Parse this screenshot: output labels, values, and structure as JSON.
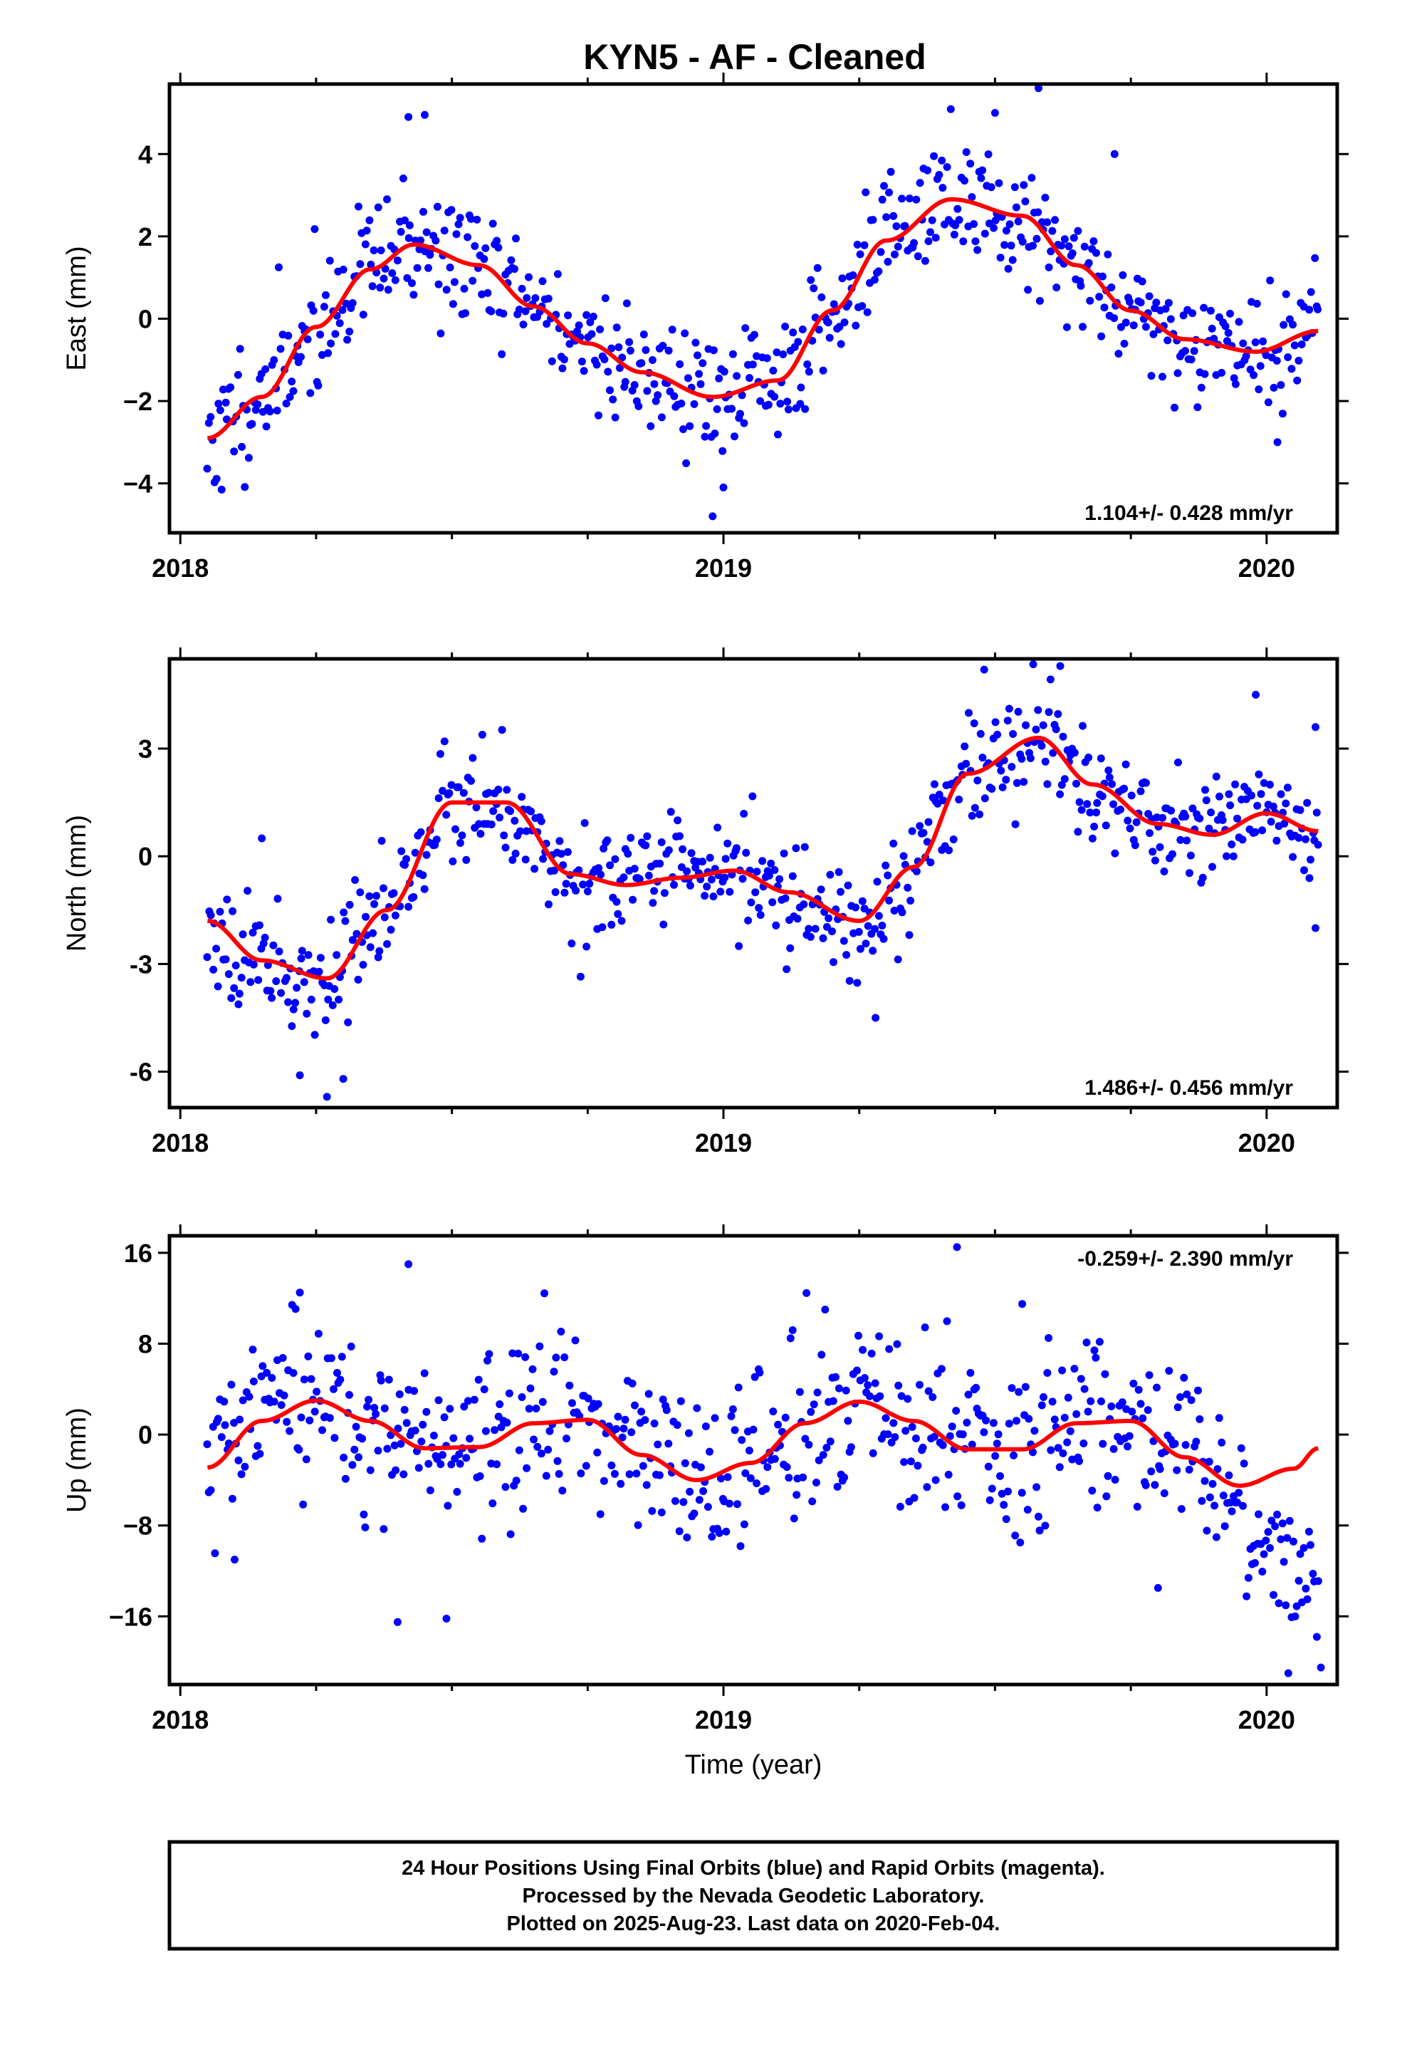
{
  "title": "KYN5  - AF - Cleaned",
  "colors": {
    "final_orbits": "#0000ff",
    "fit_curve": "#ff0000",
    "frame": "#000000"
  },
  "chart_data": [
    {
      "type": "scatter",
      "panel": "east",
      "ylabel": "East (mm)",
      "xlabel": "",
      "xlim": [
        2017.98,
        2020.13
      ],
      "ylim": [
        -5.2,
        5.7
      ],
      "xticks": [
        2018,
        2019,
        2020
      ],
      "xtick_labels": [
        "2018",
        "2019",
        "2020"
      ],
      "yticks": [
        -4,
        -2,
        0,
        2,
        4
      ],
      "ytick_labels": [
        "−4",
        "−2",
        "0",
        "2",
        "4"
      ],
      "rate_label": "1.104+/- 0.428 mm/yr",
      "rate_position": "bottom-right",
      "data_span": [
        2018.05,
        2020.095
      ],
      "fit_curve": {
        "x": [
          2018.05,
          2018.15,
          2018.25,
          2018.35,
          2018.43,
          2018.55,
          2018.65,
          2018.75,
          2018.85,
          2018.98,
          2019.1,
          2019.2,
          2019.3,
          2019.42,
          2019.55,
          2019.65,
          2019.75,
          2019.85,
          2019.98,
          2020.095
        ],
        "y": [
          -2.9,
          -1.9,
          -0.2,
          1.2,
          1.8,
          1.3,
          0.3,
          -0.6,
          -1.3,
          -1.9,
          -1.5,
          0.2,
          1.9,
          2.9,
          2.5,
          1.3,
          0.2,
          -0.5,
          -0.8,
          -0.3
        ]
      },
      "points": {
        "seed": 11,
        "count": 620,
        "scatter_sd": 0.95,
        "outliers": [
          [
            2018.42,
            4.9
          ],
          [
            2018.45,
            4.95
          ],
          [
            2019.58,
            5.6
          ],
          [
            2019.72,
            4.0
          ],
          [
            2018.98,
            -4.8
          ],
          [
            2019.0,
            -4.1
          ],
          [
            2020.02,
            -3.0
          ],
          [
            2019.5,
            5.0
          ]
        ]
      }
    },
    {
      "type": "scatter",
      "panel": "north",
      "ylabel": "North (mm)",
      "xlabel": "",
      "xlim": [
        2017.98,
        2020.13
      ],
      "ylim": [
        -7.0,
        5.5
      ],
      "xticks": [
        2018,
        2019,
        2020
      ],
      "xtick_labels": [
        "2018",
        "2019",
        "2020"
      ],
      "yticks": [
        -6,
        -3,
        0,
        3
      ],
      "ytick_labels": [
        "-6",
        "-3",
        "0",
        "3"
      ],
      "rate_label": "1.486+/- 0.456 mm/yr",
      "rate_position": "bottom-right",
      "data_span": [
        2018.05,
        2020.095
      ],
      "fit_curve": {
        "x": [
          2018.05,
          2018.15,
          2018.27,
          2018.38,
          2018.5,
          2018.6,
          2018.72,
          2018.82,
          2018.92,
          2019.02,
          2019.12,
          2019.25,
          2019.35,
          2019.45,
          2019.58,
          2019.68,
          2019.8,
          2019.9,
          2020.0,
          2020.095
        ],
        "y": [
          -1.8,
          -2.9,
          -3.4,
          -1.5,
          1.5,
          1.5,
          -0.5,
          -0.8,
          -0.6,
          -0.4,
          -1.0,
          -1.8,
          -0.3,
          2.3,
          3.3,
          2.0,
          0.9,
          0.6,
          1.2,
          0.7
        ]
      },
      "points": {
        "seed": 23,
        "count": 620,
        "scatter_sd": 0.95,
        "outliers": [
          [
            2018.27,
            -6.7
          ],
          [
            2018.22,
            -6.1
          ],
          [
            2018.3,
            -6.2
          ],
          [
            2019.28,
            -4.5
          ],
          [
            2019.62,
            5.3
          ],
          [
            2019.48,
            5.2
          ],
          [
            2019.98,
            4.5
          ],
          [
            2018.15,
            0.5
          ],
          [
            2020.09,
            3.6
          ],
          [
            2020.09,
            -2.0
          ]
        ]
      }
    },
    {
      "type": "scatter",
      "panel": "up",
      "ylabel": "Up (mm)",
      "xlabel": "Time (year)",
      "xlim": [
        2017.98,
        2020.13
      ],
      "ylim": [
        -22,
        17.5
      ],
      "xticks": [
        2018,
        2019,
        2020
      ],
      "xtick_labels": [
        "2018",
        "2019",
        "2020"
      ],
      "yticks": [
        -16,
        -8,
        0,
        8,
        16
      ],
      "ytick_labels": [
        "−16",
        "−8",
        "0",
        "8",
        "16"
      ],
      "rate_label": "-0.259+/- 2.390 mm/yr",
      "rate_position": "top-right",
      "data_span": [
        2018.05,
        2020.095
      ],
      "fit_curve": {
        "x": [
          2018.05,
          2018.15,
          2018.25,
          2018.35,
          2018.45,
          2018.55,
          2018.65,
          2018.75,
          2018.85,
          2018.95,
          2019.05,
          2019.15,
          2019.25,
          2019.35,
          2019.45,
          2019.55,
          2019.65,
          2019.75,
          2019.85,
          2019.95,
          2020.05,
          2020.095
        ],
        "y": [
          -2.9,
          1.2,
          3.0,
          1.2,
          -1.2,
          -1.1,
          1.0,
          1.3,
          -1.8,
          -4.0,
          -2.5,
          1.0,
          2.9,
          1.2,
          -1.3,
          -1.3,
          1.0,
          1.2,
          -2.0,
          -4.5,
          -3.0,
          -1.2
        ]
      },
      "points": {
        "seed": 37,
        "count": 620,
        "scatter_sd": 4.6,
        "outliers": [
          [
            2018.42,
            15.0
          ],
          [
            2019.43,
            16.5
          ],
          [
            2018.1,
            -11.0
          ],
          [
            2018.4,
            -16.5
          ],
          [
            2018.49,
            -16.2
          ],
          [
            2020.04,
            -21.0
          ],
          [
            2020.1,
            -20.5
          ],
          [
            2019.8,
            -13.5
          ],
          [
            2018.22,
            12.5
          ],
          [
            2019.55,
            11.5
          ]
        ],
        "late_drift": {
          "from": 2019.82,
          "to": 2020.095,
          "y_start": 0.5,
          "y_end": -14.0
        }
      }
    }
  ],
  "caption": {
    "line1": "24 Hour Positions Using Final Orbits (blue) and Rapid Orbits (magenta).",
    "line2": "Processed by the Nevada Geodetic Laboratory.",
    "line3": "Plotted on 2025-Aug-23. Last data on 2020-Feb-04."
  }
}
